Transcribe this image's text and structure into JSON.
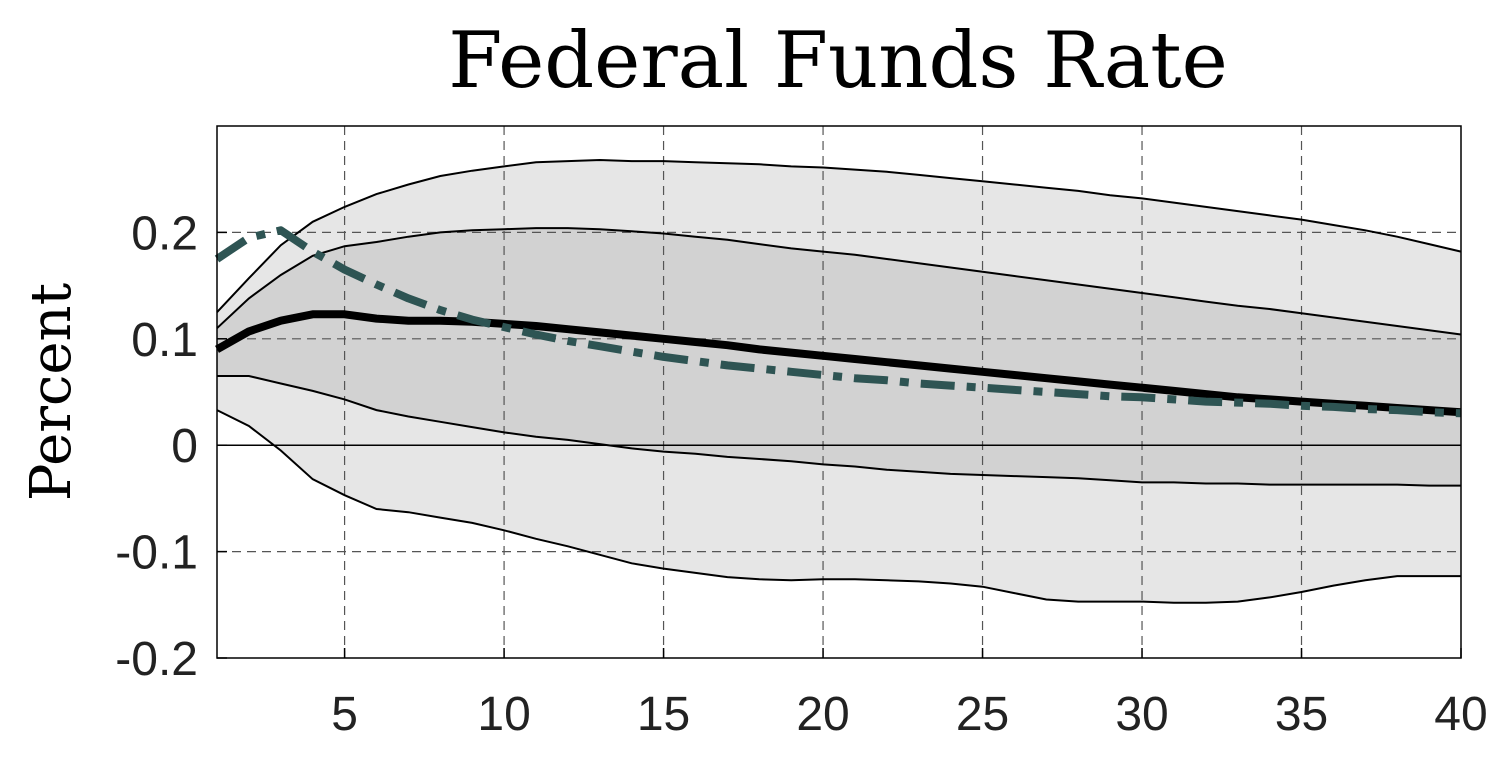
{
  "chart_data": {
    "type": "line",
    "title": "Federal Funds Rate",
    "xlabel": "",
    "ylabel": "Percent",
    "xlim": [
      1,
      40
    ],
    "ylim": [
      -0.2,
      0.3
    ],
    "xticks": [
      5,
      10,
      15,
      20,
      25,
      30,
      35,
      40
    ],
    "xtick_labels": [
      "5",
      "10",
      "15",
      "20",
      "25",
      "30",
      "35",
      "40"
    ],
    "yticks": [
      -0.2,
      -0.1,
      0,
      0.1,
      0.2
    ],
    "ytick_labels": [
      "-0.2",
      "-0.1",
      "0",
      "0.1",
      "0.2"
    ],
    "grid": "dashed",
    "x": [
      1,
      2,
      3,
      4,
      5,
      6,
      7,
      8,
      9,
      10,
      11,
      12,
      13,
      14,
      15,
      16,
      17,
      18,
      19,
      20,
      21,
      22,
      23,
      24,
      25,
      26,
      27,
      28,
      29,
      30,
      31,
      32,
      33,
      34,
      35,
      36,
      37,
      38,
      39,
      40
    ],
    "bands": [
      {
        "level": "outer",
        "color": "#e6e6e6",
        "upper": [
          0.125,
          0.157,
          0.188,
          0.21,
          0.224,
          0.236,
          0.245,
          0.253,
          0.258,
          0.262,
          0.266,
          0.267,
          0.268,
          0.267,
          0.267,
          0.266,
          0.265,
          0.264,
          0.262,
          0.261,
          0.259,
          0.257,
          0.254,
          0.251,
          0.248,
          0.245,
          0.242,
          0.239,
          0.235,
          0.232,
          0.228,
          0.224,
          0.22,
          0.216,
          0.212,
          0.207,
          0.202,
          0.196,
          0.189,
          0.182
        ],
        "lower": [
          0.033,
          0.018,
          -0.005,
          -0.032,
          -0.047,
          -0.06,
          -0.063,
          -0.068,
          -0.073,
          -0.08,
          -0.088,
          -0.095,
          -0.103,
          -0.111,
          -0.116,
          -0.12,
          -0.124,
          -0.126,
          -0.127,
          -0.126,
          -0.126,
          -0.127,
          -0.128,
          -0.13,
          -0.133,
          -0.139,
          -0.145,
          -0.147,
          -0.147,
          -0.147,
          -0.148,
          -0.148,
          -0.147,
          -0.143,
          -0.138,
          -0.132,
          -0.127,
          -0.123,
          -0.123,
          -0.123
        ]
      },
      {
        "level": "inner",
        "color": "#d2d2d2",
        "upper": [
          0.11,
          0.138,
          0.16,
          0.178,
          0.187,
          0.191,
          0.196,
          0.2,
          0.202,
          0.203,
          0.204,
          0.204,
          0.203,
          0.201,
          0.199,
          0.196,
          0.193,
          0.189,
          0.185,
          0.182,
          0.179,
          0.175,
          0.171,
          0.167,
          0.163,
          0.159,
          0.155,
          0.151,
          0.147,
          0.143,
          0.139,
          0.135,
          0.131,
          0.128,
          0.124,
          0.12,
          0.116,
          0.112,
          0.108,
          0.104
        ],
        "lower": [
          0.065,
          0.065,
          0.058,
          0.051,
          0.043,
          0.033,
          0.027,
          0.022,
          0.017,
          0.012,
          0.008,
          0.005,
          0.001,
          -0.003,
          -0.006,
          -0.008,
          -0.011,
          -0.013,
          -0.015,
          -0.018,
          -0.02,
          -0.023,
          -0.025,
          -0.027,
          -0.028,
          -0.029,
          -0.03,
          -0.031,
          -0.033,
          -0.035,
          -0.035,
          -0.036,
          -0.036,
          -0.037,
          -0.037,
          -0.037,
          -0.037,
          -0.037,
          -0.038,
          -0.038
        ]
      }
    ],
    "series": [
      {
        "style": "solid",
        "color": "#000000",
        "values": [
          0.09,
          0.107,
          0.117,
          0.123,
          0.123,
          0.119,
          0.117,
          0.117,
          0.116,
          0.114,
          0.112,
          0.109,
          0.106,
          0.103,
          0.1,
          0.097,
          0.094,
          0.09,
          0.087,
          0.084,
          0.081,
          0.078,
          0.075,
          0.072,
          0.069,
          0.066,
          0.063,
          0.06,
          0.057,
          0.054,
          0.051,
          0.048,
          0.045,
          0.043,
          0.041,
          0.039,
          0.037,
          0.035,
          0.033,
          0.031
        ]
      },
      {
        "style": "dash-dot",
        "color": "#2e5453",
        "values": [
          0.175,
          0.195,
          0.202,
          0.182,
          0.165,
          0.151,
          0.138,
          0.127,
          0.118,
          0.111,
          0.104,
          0.098,
          0.093,
          0.088,
          0.083,
          0.079,
          0.075,
          0.072,
          0.069,
          0.066,
          0.063,
          0.061,
          0.058,
          0.056,
          0.054,
          0.052,
          0.05,
          0.048,
          0.046,
          0.045,
          0.043,
          0.041,
          0.04,
          0.039,
          0.037,
          0.036,
          0.034,
          0.033,
          0.031,
          0.03
        ]
      }
    ],
    "zero_line": true
  }
}
